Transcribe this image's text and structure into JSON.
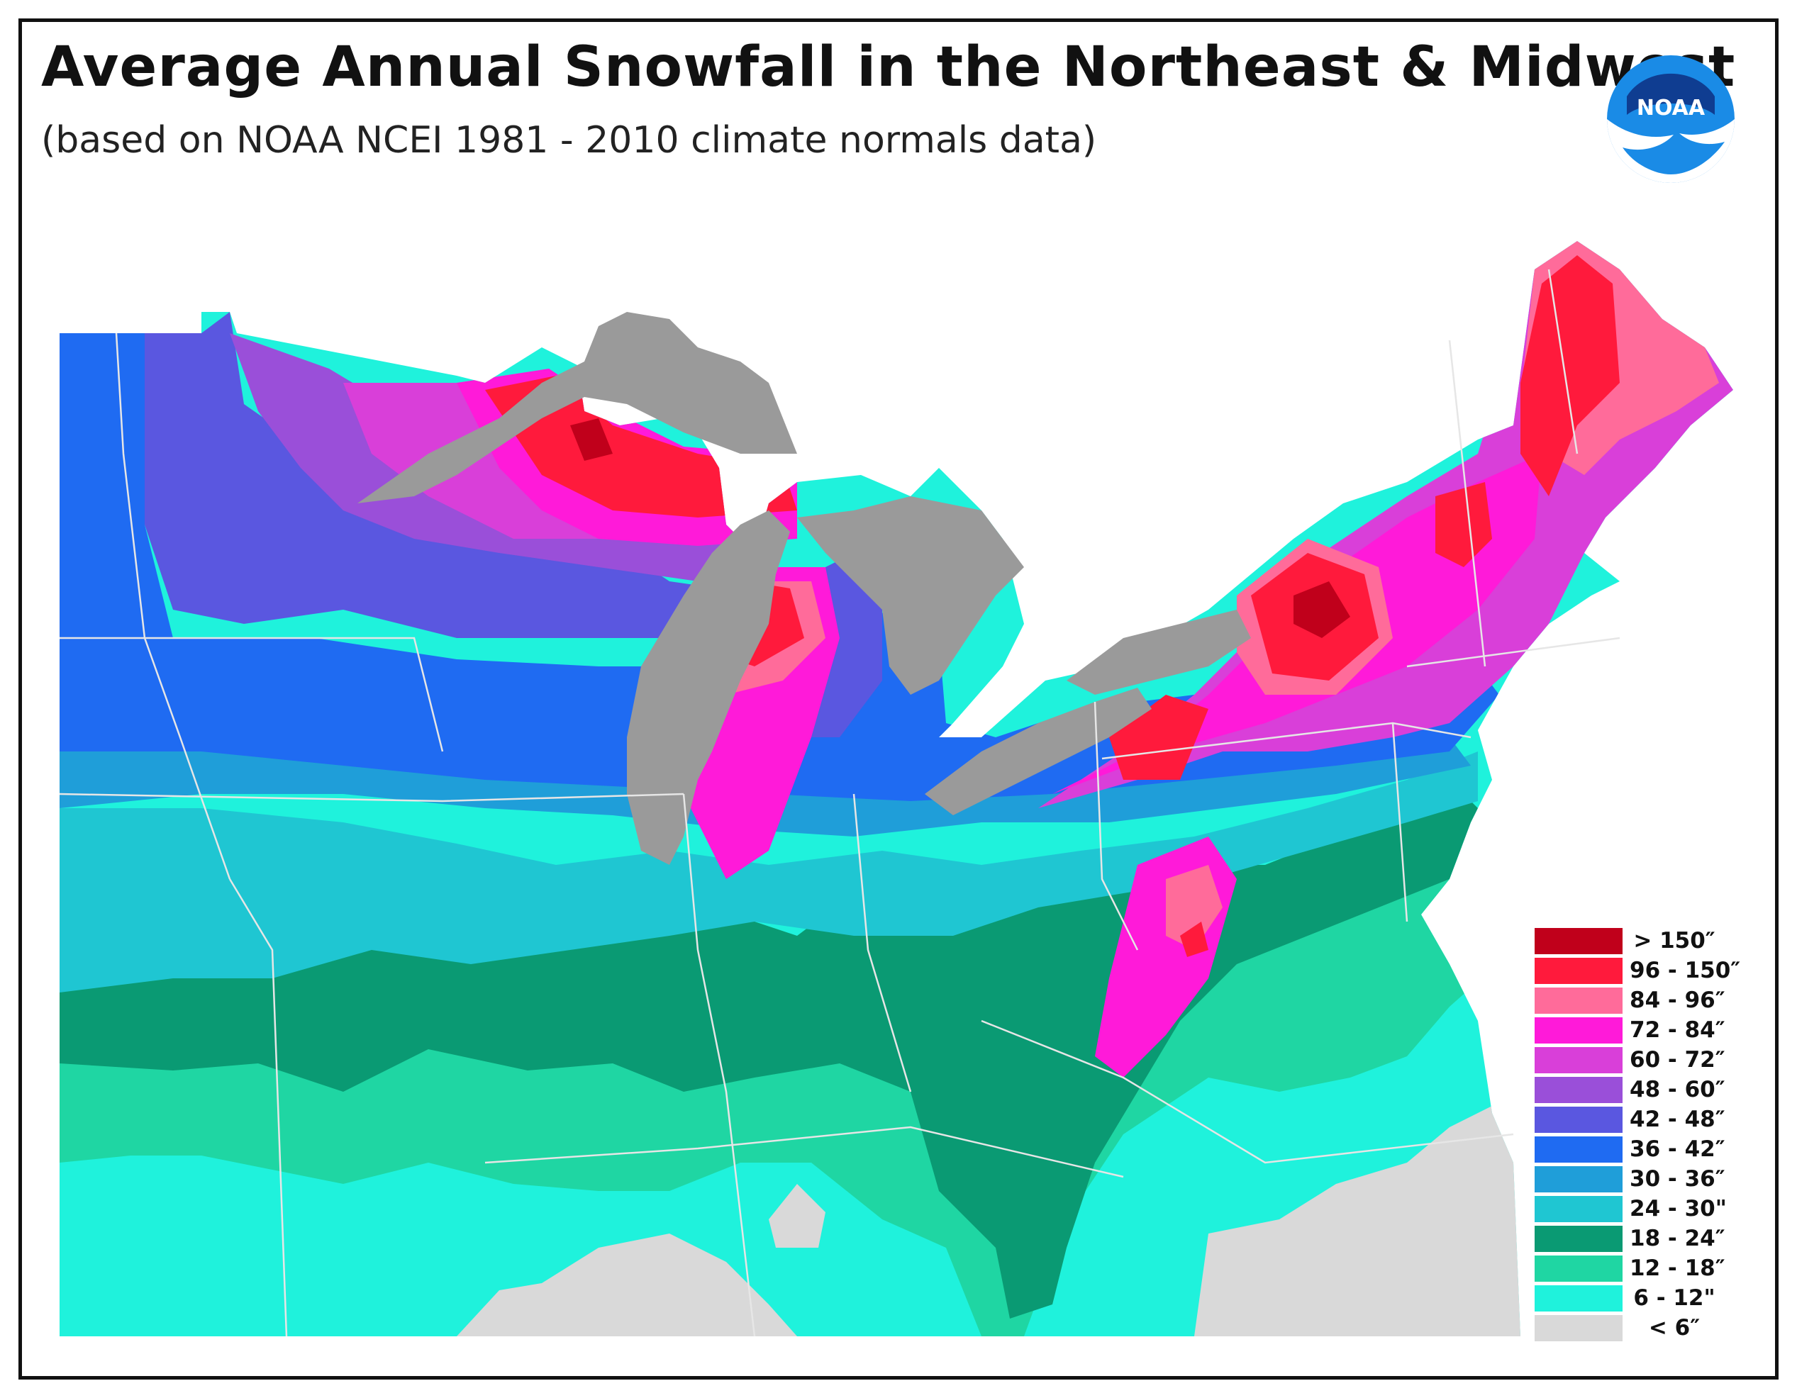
{
  "title": "Average Annual Snowfall in the Northeast & Midwest",
  "subtitle": "(based on NOAA NCEI 1981 - 2010 climate normals data)",
  "logo": {
    "text": "NOAA",
    "primary_color": "#1a8be6",
    "dark_color": "#0f3d91"
  },
  "map": {
    "lake_color": "#9a9a9a",
    "background_color": "#ffffff",
    "border_color": "#e6e6e6"
  },
  "legend": [
    {
      "label": "> 150″",
      "color": "#c0001b"
    },
    {
      "label": "96 - 150″",
      "color": "#ff1a3c"
    },
    {
      "label": "84 - 96″",
      "color": "#ff6b9a"
    },
    {
      "label": "72 - 84″",
      "color": "#ff1ad9"
    },
    {
      "label": "60 - 72″",
      "color": "#d93fd9"
    },
    {
      "label": "48 - 60″",
      "color": "#9a4fd9"
    },
    {
      "label": "42 - 48″",
      "color": "#5a57e0"
    },
    {
      "label": "36 - 42″",
      "color": "#1f6bf2"
    },
    {
      "label": "30 - 36″",
      "color": "#1f9ed9"
    },
    {
      "label": "24 - 30\"",
      "color": "#1fc6d2"
    },
    {
      "label": "18 - 24″",
      "color": "#0a9a73"
    },
    {
      "label": "12 - 18″",
      "color": "#1fd6a3"
    },
    {
      "label": "6 - 12\"",
      "color": "#1ff2dc"
    },
    {
      "label": "< 6″",
      "color": "#d9d9d9"
    }
  ]
}
